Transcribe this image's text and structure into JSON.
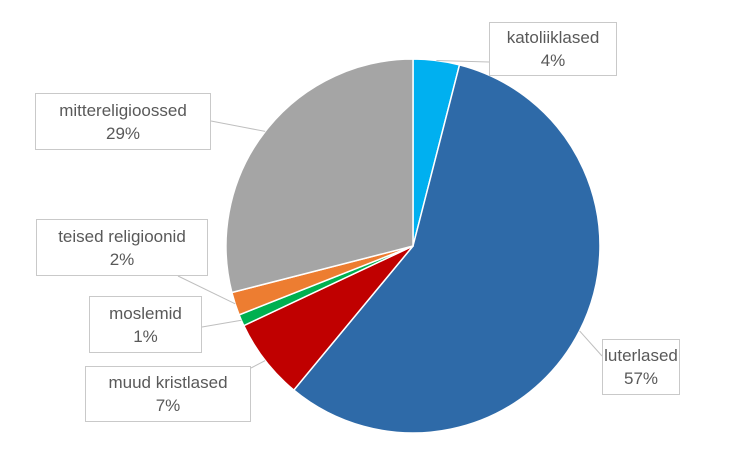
{
  "chart_data": {
    "type": "pie",
    "title": "",
    "start_angle_deg": 0,
    "direction": "clockwise",
    "slices": [
      {
        "label": "katoliiklased",
        "value": 4,
        "value_label": "4%",
        "color": "#00b0f0"
      },
      {
        "label": "luterlased",
        "value": 57,
        "value_label": "57%",
        "color": "#2e6aa8"
      },
      {
        "label": "muud kristlased",
        "value": 7,
        "value_label": "7%",
        "color": "#c00000"
      },
      {
        "label": "moslemid",
        "value": 1,
        "value_label": "1%",
        "color": "#00b050"
      },
      {
        "label": "teised religioonid",
        "value": 2,
        "value_label": "2%",
        "color": "#ed7d31"
      },
      {
        "label": "mittereligioossed",
        "value": 29,
        "value_label": "29%",
        "color": "#a5a5a5"
      }
    ]
  }
}
